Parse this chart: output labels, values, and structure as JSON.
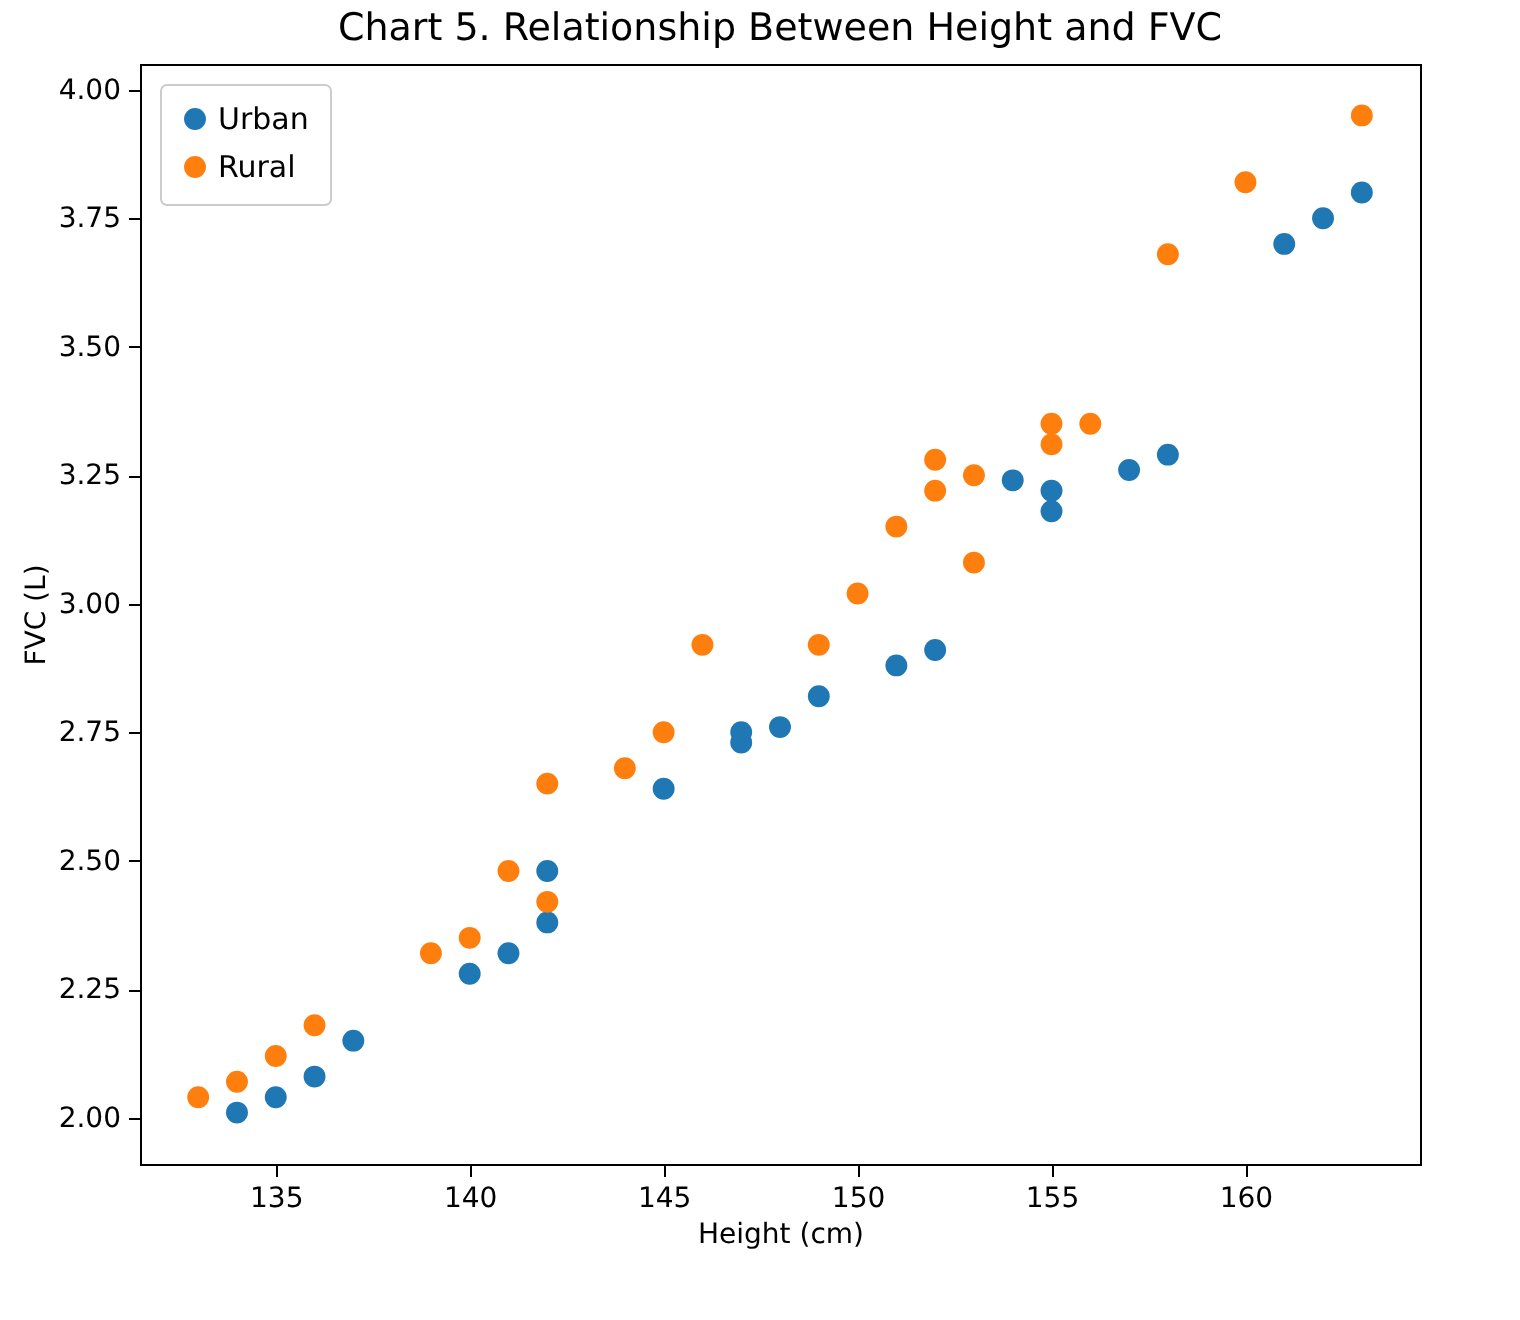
{
  "chart_data": {
    "type": "scatter",
    "title": "Chart 5. Relationship Between Height and FVC",
    "xlabel": "Height (cm)",
    "ylabel": "FVC (L)",
    "xlim": [
      131.5,
      164.5
    ],
    "xticks": [
      135,
      140,
      145,
      150,
      155,
      160
    ],
    "ylim": [
      1.91,
      4.05
    ],
    "yticks": [
      {
        "value": 2,
        "label": "2.00"
      },
      {
        "value": 2.25,
        "label": "2.25"
      },
      {
        "value": 2.5,
        "label": "2.50"
      },
      {
        "value": 2.75,
        "label": "2.75"
      },
      {
        "value": 3,
        "label": "3.00"
      },
      {
        "value": 3.25,
        "label": "3.25"
      },
      {
        "value": 3.5,
        "label": "3.50"
      },
      {
        "value": 3.75,
        "label": "3.75"
      },
      {
        "value": 4,
        "label": "4.00"
      }
    ],
    "series": [
      {
        "name": "Urban",
        "color": "#1f77b4",
        "x": [
          134,
          135,
          136,
          137,
          140,
          141,
          142,
          142,
          145,
          147,
          147,
          148,
          149,
          151,
          152,
          154,
          155,
          155,
          157,
          158,
          161,
          162,
          163
        ],
        "values": [
          2.01,
          2.04,
          2.08,
          2.15,
          2.28,
          2.32,
          2.38,
          2.48,
          2.64,
          2.73,
          2.75,
          2.76,
          2.82,
          2.88,
          2.91,
          3.24,
          3.18,
          3.22,
          3.26,
          3.29,
          3.7,
          3.75,
          3.8
        ]
      },
      {
        "name": "Rural",
        "color": "#ff7f0e",
        "x": [
          133,
          134,
          135,
          136,
          139,
          140,
          141,
          142,
          142,
          144,
          145,
          146,
          149,
          150,
          151,
          152,
          152,
          153,
          153,
          155,
          155,
          156,
          158,
          160,
          163
        ],
        "values": [
          2.04,
          2.07,
          2.12,
          2.18,
          2.32,
          2.35,
          2.48,
          2.42,
          2.65,
          2.68,
          2.75,
          2.92,
          2.92,
          3.02,
          3.15,
          3.22,
          3.28,
          3.08,
          3.25,
          3.31,
          3.35,
          3.35,
          3.68,
          3.82,
          3.95
        ]
      }
    ],
    "legend": "top left",
    "marker": "circle",
    "grid": false
  }
}
